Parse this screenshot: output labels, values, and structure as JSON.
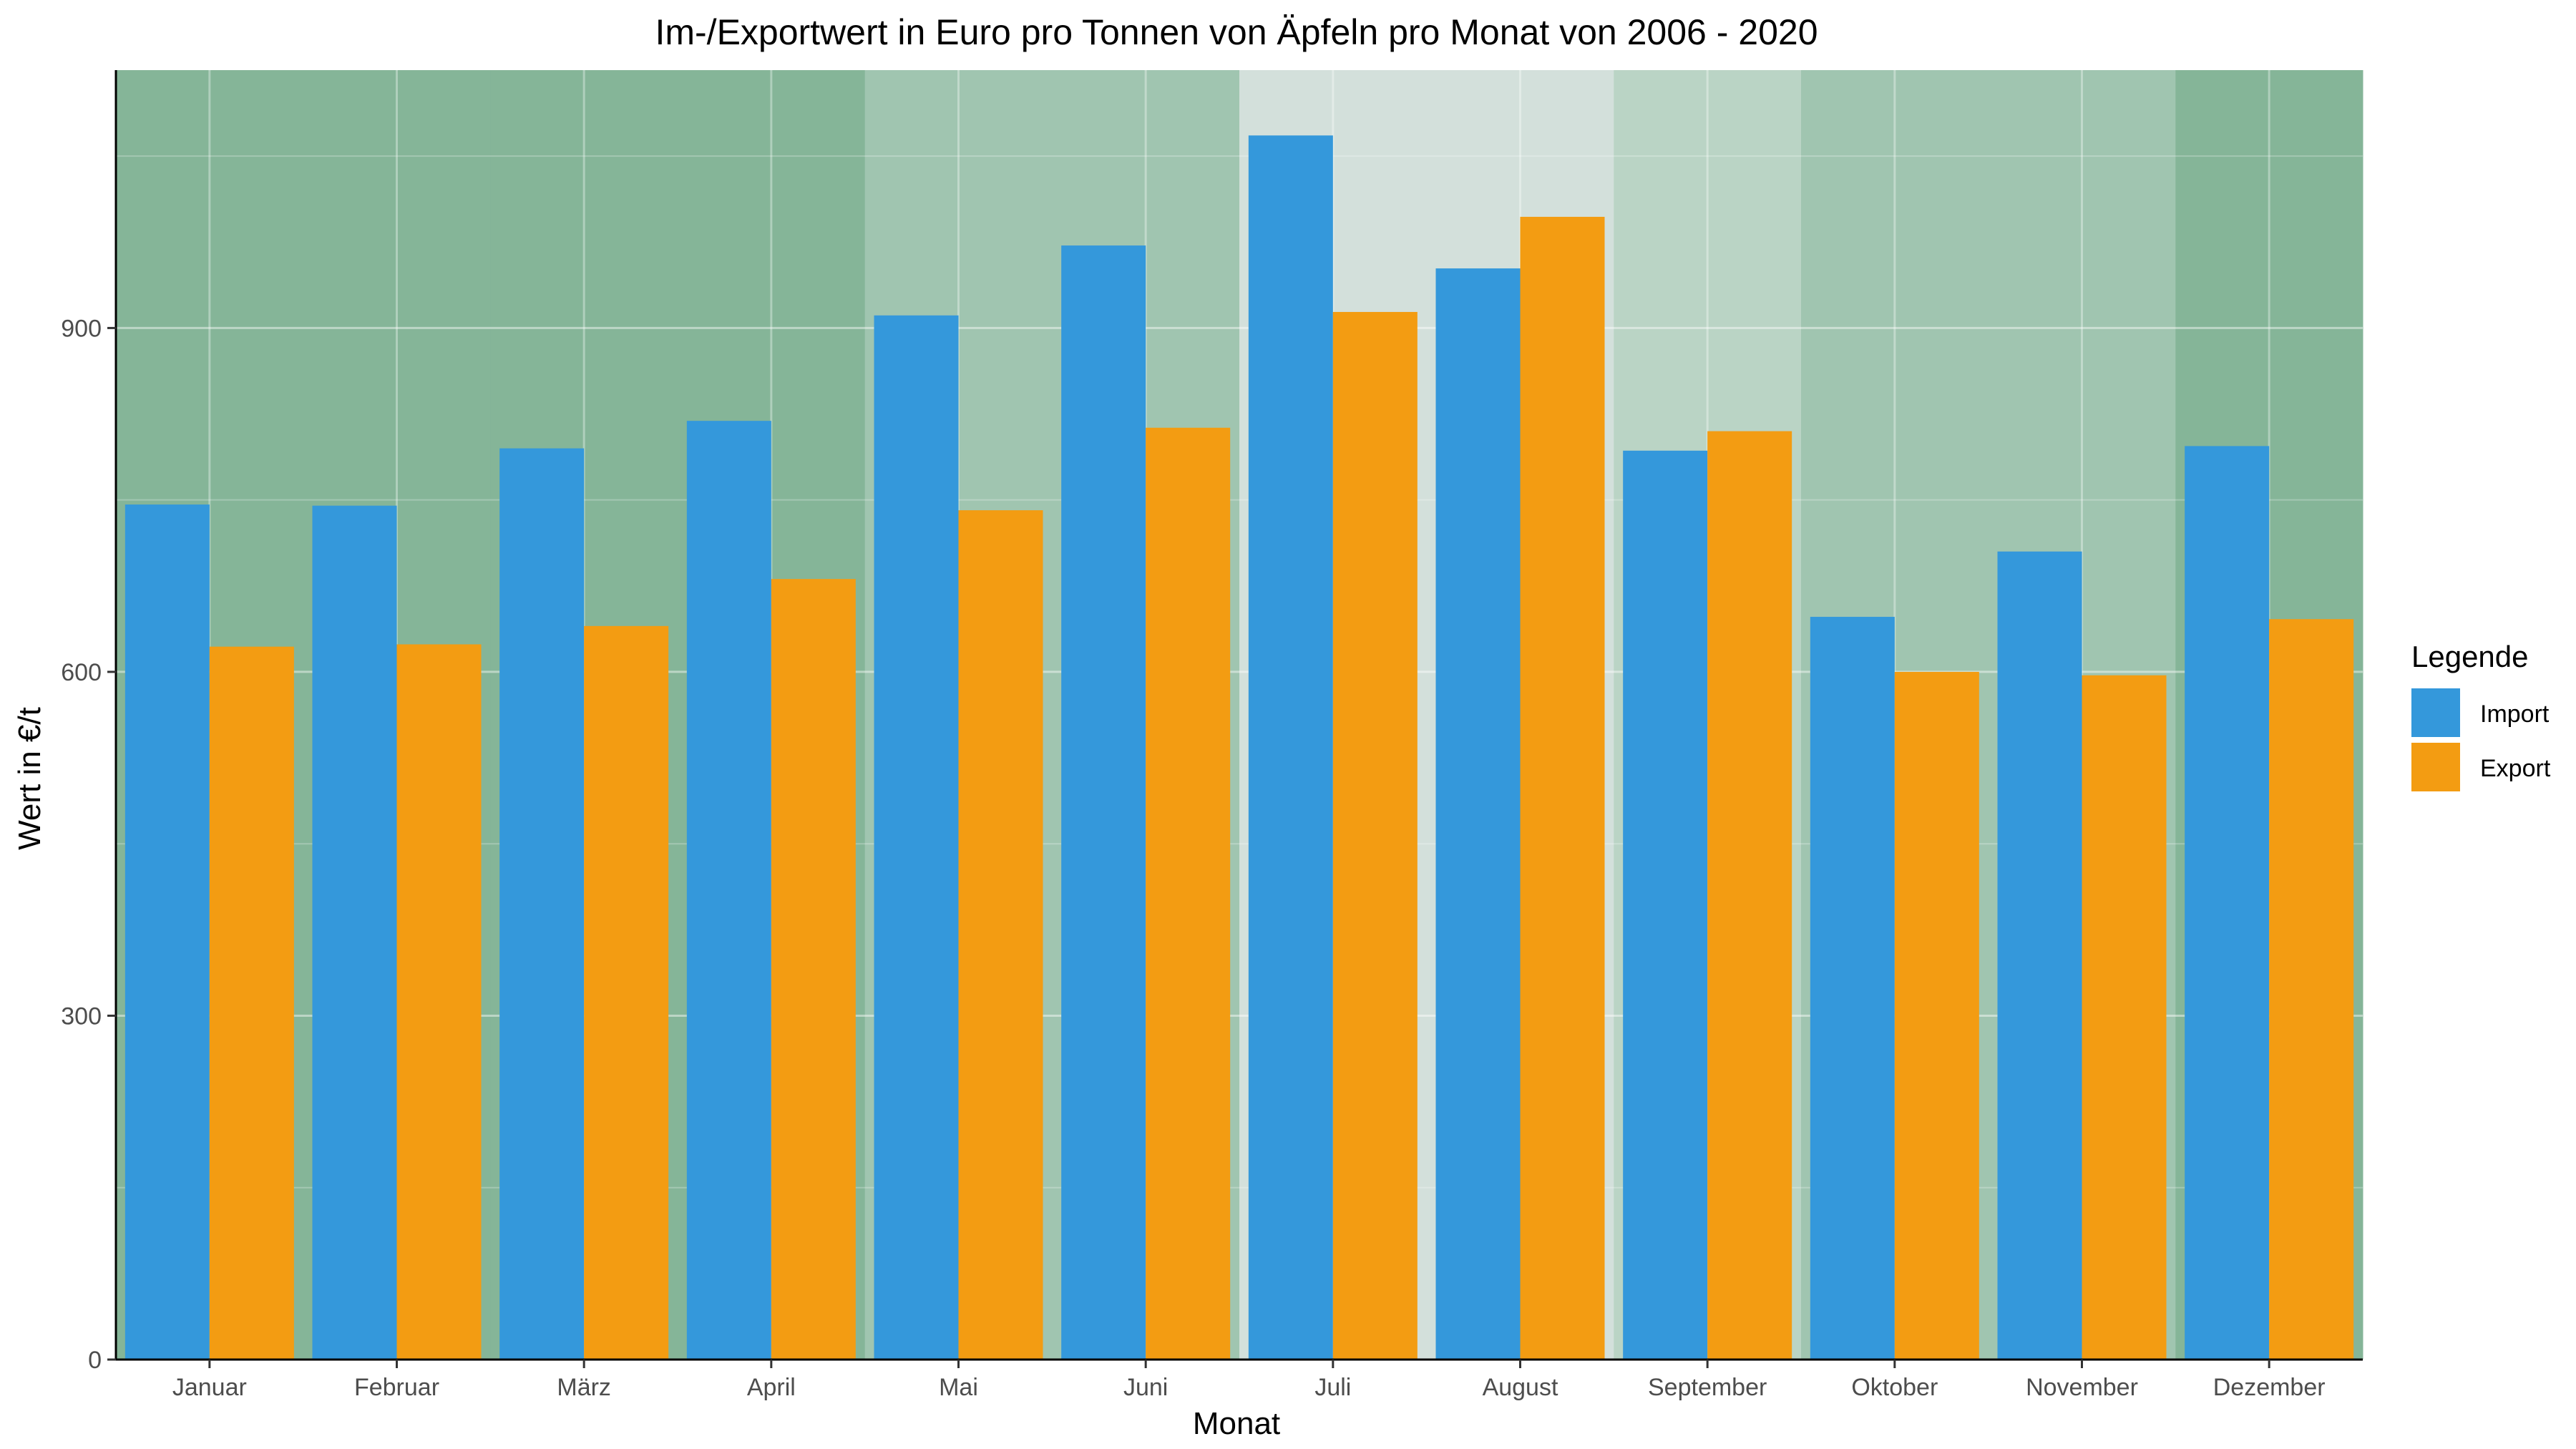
{
  "chart_data": {
    "type": "bar",
    "title": "Im-/Exportwert in Euro pro Tonnen von Äpfeln pro Monat von 2006 - 2020",
    "xlabel": "Monat",
    "ylabel": "Wert in €/t",
    "categories": [
      "Januar",
      "Februar",
      "März",
      "April",
      "Mai",
      "Juni",
      "Juli",
      "August",
      "September",
      "Oktober",
      "November",
      "Dezember"
    ],
    "series": [
      {
        "name": "Import",
        "color": "#3498db",
        "values": [
          746,
          745,
          795,
          819,
          911,
          972,
          1068,
          952,
          793,
          648,
          705,
          797
        ]
      },
      {
        "name": "Export",
        "color": "#f39c12",
        "values": [
          622,
          624,
          640,
          681,
          741,
          813,
          914,
          997,
          810,
          600,
          597,
          646
        ]
      }
    ],
    "ylim": [
      0,
      1125
    ],
    "yticks": [
      0,
      300,
      600,
      900
    ],
    "background_shading": {
      "description_colors": [
        "#85b598",
        "#85b598",
        "#85b598",
        "#85b598",
        "#a0c5b0",
        "#a0c5b0",
        "#d3e0db",
        "#d3e0db",
        "#bad4c5",
        "#a0c5b0",
        "#a0c5b0",
        "#85b598"
      ]
    },
    "grid": true,
    "legend": {
      "title": "Legende",
      "position": "right",
      "entries": [
        "Import",
        "Export"
      ]
    }
  }
}
